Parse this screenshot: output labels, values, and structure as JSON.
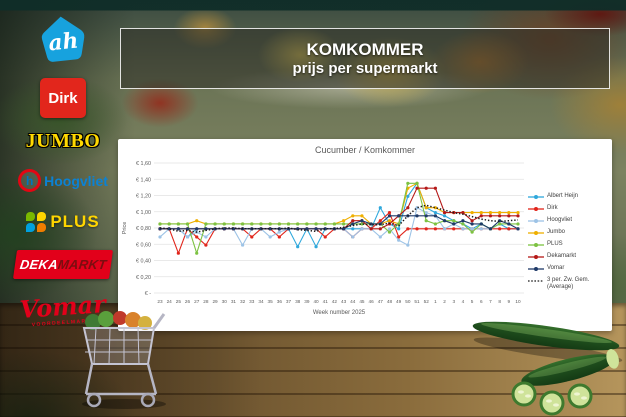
{
  "banner": {
    "title": "KOMKOMMER",
    "subtitle": "prijs per supermarkt"
  },
  "sidebar": {
    "albert_heijn": "ah",
    "dirk": "Dirk",
    "jumbo": "JUMBO",
    "hoogvliet": "Hoogvliet",
    "plus": "PLUS",
    "dekamarkt_deka": "DEKA",
    "dekamarkt_markt": "MARKT",
    "vomar": "Vomar",
    "vomar_sub": "VOORDEELMARKT"
  },
  "chart_data": {
    "type": "line",
    "title": "Cucumber / Komkommer",
    "xlabel": "Week number 2025",
    "ylabel": "Price",
    "ylim": [
      0,
      1.6
    ],
    "grid": true,
    "legend_position": "right",
    "yticks": [
      {
        "v": 1.6,
        "label": "€ 1,60"
      },
      {
        "v": 1.4,
        "label": "€ 1,40"
      },
      {
        "v": 1.2,
        "label": "€ 1,20"
      },
      {
        "v": 1.0,
        "label": "€ 1,00"
      },
      {
        "v": 0.8,
        "label": "€ 0,80"
      },
      {
        "v": 0.6,
        "label": "€ 0,60"
      },
      {
        "v": 0.4,
        "label": "€ 0,40"
      },
      {
        "v": 0.2,
        "label": "€ 0,20"
      },
      {
        "v": 0.0,
        "label": "€ -"
      }
    ],
    "categories": [
      "23",
      "24",
      "25",
      "26",
      "27",
      "28",
      "29",
      "30",
      "31",
      "32",
      "33",
      "34",
      "35",
      "36",
      "37",
      "38",
      "39",
      "40",
      "41",
      "42",
      "43",
      "44",
      "45",
      "46",
      "47",
      "48",
      "49",
      "50",
      "51",
      "52",
      "1",
      "2",
      "3",
      "4",
      "5",
      "6",
      "7",
      "8",
      "9",
      "10"
    ],
    "series": [
      {
        "name": "Albert Heijn",
        "color": "#2FA8DC",
        "dotted": false,
        "values": [
          0.79,
          0.79,
          0.79,
          0.69,
          0.79,
          0.79,
          0.79,
          0.79,
          0.79,
          0.79,
          0.79,
          0.79,
          0.79,
          0.79,
          0.79,
          0.57,
          0.79,
          0.57,
          0.79,
          0.79,
          0.79,
          0.79,
          0.79,
          0.79,
          1.05,
          0.85,
          0.79,
          1.19,
          1.35,
          1.05,
          0.99,
          0.95,
          0.89,
          0.85,
          0.79,
          0.85,
          0.79,
          0.85,
          0.79,
          0.79
        ]
      },
      {
        "name": "Dirk",
        "color": "#E1251B",
        "dotted": false,
        "values": [
          0.79,
          0.79,
          0.49,
          0.79,
          0.69,
          0.59,
          0.79,
          0.79,
          0.79,
          0.79,
          0.69,
          0.79,
          0.79,
          0.69,
          0.79,
          0.79,
          0.79,
          0.79,
          0.69,
          0.79,
          0.79,
          0.69,
          0.79,
          0.79,
          0.89,
          0.99,
          0.69,
          0.79,
          0.79,
          0.79,
          0.79,
          0.79,
          0.79,
          0.79,
          0.79,
          0.79,
          0.79,
          0.79,
          0.79,
          0.79
        ]
      },
      {
        "name": "Hoogvliet",
        "color": "#9DC3E6",
        "dotted": false,
        "values": [
          0.69,
          0.79,
          0.79,
          0.69,
          0.75,
          0.69,
          0.79,
          0.79,
          0.79,
          0.59,
          0.79,
          0.79,
          0.69,
          0.75,
          0.79,
          0.79,
          0.79,
          0.79,
          0.79,
          0.79,
          0.79,
          0.69,
          0.79,
          0.79,
          0.69,
          0.79,
          0.65,
          0.59,
          1.05,
          0.99,
          0.95,
          0.79,
          0.85,
          0.79,
          0.79,
          0.79,
          0.79,
          0.85,
          0.85,
          0.79
        ]
      },
      {
        "name": "Jumbo",
        "color": "#EFAF00",
        "dotted": false,
        "values": [
          0.85,
          0.85,
          0.85,
          0.85,
          0.89,
          0.85,
          0.85,
          0.85,
          0.85,
          0.85,
          0.85,
          0.85,
          0.85,
          0.85,
          0.85,
          0.85,
          0.85,
          0.85,
          0.85,
          0.85,
          0.89,
          0.95,
          0.95,
          0.85,
          0.85,
          0.89,
          0.85,
          1.29,
          1.35,
          1.05,
          1.05,
          0.99,
          0.99,
          0.99,
          0.99,
          0.99,
          0.99,
          0.99,
          0.99,
          0.99
        ]
      },
      {
        "name": "PLUS",
        "color": "#7DC242",
        "dotted": false,
        "values": [
          0.85,
          0.85,
          0.85,
          0.85,
          0.49,
          0.85,
          0.85,
          0.85,
          0.85,
          0.85,
          0.85,
          0.85,
          0.85,
          0.85,
          0.85,
          0.85,
          0.85,
          0.85,
          0.85,
          0.85,
          0.85,
          0.85,
          0.85,
          0.85,
          0.85,
          0.75,
          0.85,
          1.35,
          1.35,
          0.89,
          0.85,
          0.89,
          0.89,
          0.85,
          0.75,
          0.85,
          0.79,
          0.85,
          0.85,
          0.85
        ]
      },
      {
        "name": "Dekamarkt",
        "color": "#B51918",
        "dotted": false,
        "values": [
          0.79,
          0.79,
          0.79,
          0.79,
          0.79,
          0.79,
          0.79,
          0.79,
          0.79,
          0.79,
          0.79,
          0.79,
          0.79,
          0.79,
          0.79,
          0.79,
          0.79,
          0.79,
          0.79,
          0.79,
          0.79,
          0.89,
          0.89,
          0.79,
          0.79,
          0.85,
          0.95,
          1.05,
          1.29,
          1.29,
          1.29,
          0.99,
          0.99,
          0.99,
          0.89,
          0.95,
          0.95,
          0.95,
          0.95,
          0.95
        ]
      },
      {
        "name": "Vomar",
        "color": "#1F3A68",
        "dotted": false,
        "values": [
          0.79,
          0.79,
          0.79,
          0.79,
          0.79,
          0.79,
          0.79,
          0.79,
          0.79,
          0.79,
          0.79,
          0.79,
          0.79,
          0.79,
          0.79,
          0.79,
          0.79,
          0.79,
          0.79,
          0.79,
          0.79,
          0.85,
          0.89,
          0.85,
          0.85,
          0.95,
          0.95,
          0.95,
          0.95,
          0.95,
          0.95,
          0.89,
          0.85,
          0.89,
          0.85,
          0.85,
          0.79,
          0.89,
          0.85,
          0.79
        ]
      },
      {
        "name": "3 per. Zw. Gem. (Average)",
        "color": "#1A1A1A",
        "dotted": true,
        "values": [
          0.8,
          0.79,
          0.76,
          0.77,
          0.75,
          0.77,
          0.79,
          0.8,
          0.8,
          0.79,
          0.79,
          0.79,
          0.79,
          0.79,
          0.8,
          0.78,
          0.77,
          0.76,
          0.79,
          0.79,
          0.81,
          0.83,
          0.85,
          0.84,
          0.84,
          0.86,
          0.83,
          0.95,
          1.05,
          1.08,
          1.05,
          1.02,
          0.99,
          0.97,
          0.94,
          0.91,
          0.89,
          0.88,
          0.89,
          0.9
        ]
      }
    ]
  }
}
